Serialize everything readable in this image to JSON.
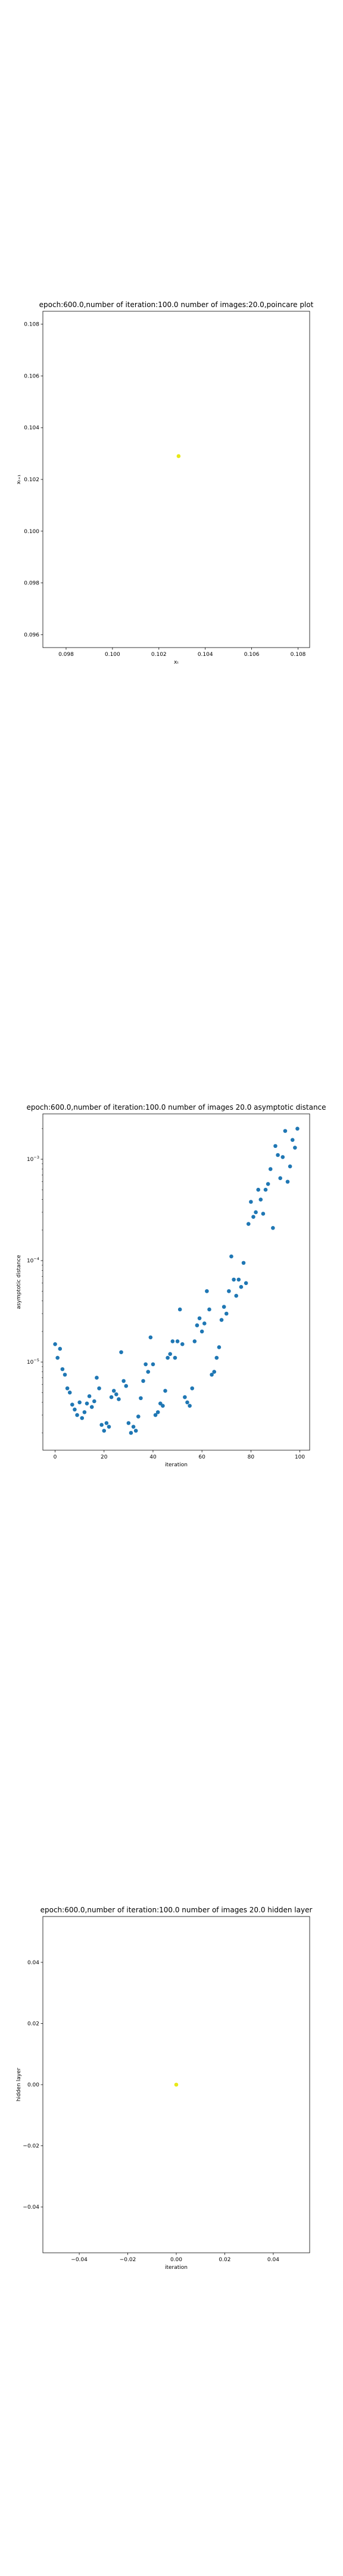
{
  "chart_data": [
    {
      "type": "scatter",
      "title": "epoch:600.0,number of iteration:100.0 number of images:20.0,poincare plot",
      "xlabel": "xₜ",
      "ylabel": "xₜ₊₁",
      "xlim": [
        0.097,
        0.1085
      ],
      "ylim": [
        0.0955,
        0.1085
      ],
      "xticks": [
        0.098,
        0.1,
        0.102,
        0.104,
        0.106,
        0.108
      ],
      "xtick_labels": [
        "0.098",
        "0.100",
        "0.102",
        "0.104",
        "0.106",
        "0.108"
      ],
      "yticks": [
        0.096,
        0.098,
        0.1,
        0.102,
        0.104,
        0.106,
        0.108
      ],
      "ytick_labels": [
        "0.096",
        "0.098",
        "0.100",
        "0.102",
        "0.104",
        "0.106",
        "0.108"
      ],
      "grid": false,
      "series": [
        {
          "x": [
            0.10285
          ],
          "y": [
            0.1029
          ],
          "color": "#e8e817"
        }
      ]
    },
    {
      "type": "scatter",
      "title": "epoch:600.0,number of iteration:100.0  number of images 20.0 asymptotic distance",
      "xlabel": "iteration",
      "ylabel": "asymptotic distance",
      "yscale": "log",
      "xlim": [
        -5,
        104
      ],
      "ylim": [
        1.35e-06,
        0.0028
      ],
      "xticks": [
        0,
        20,
        40,
        60,
        80,
        100
      ],
      "xtick_labels": [
        "0",
        "20",
        "40",
        "60",
        "80",
        "100"
      ],
      "yticks": [
        1e-05,
        0.0001,
        0.001
      ],
      "ytick_labels": [
        {
          "base": "10",
          "exp": "−5"
        },
        {
          "base": "10",
          "exp": "−4"
        },
        {
          "base": "10",
          "exp": "−3"
        }
      ],
      "grid": false,
      "series": [
        {
          "color": "#1f77b4",
          "x": [
            0,
            1,
            2,
            3,
            4,
            5,
            6,
            7,
            8,
            9,
            10,
            11,
            12,
            13,
            14,
            15,
            16,
            17,
            18,
            19,
            20,
            21,
            22,
            23,
            24,
            25,
            26,
            27,
            28,
            29,
            30,
            31,
            32,
            33,
            34,
            35,
            36,
            37,
            38,
            39,
            40,
            41,
            42,
            43,
            44,
            45,
            46,
            47,
            48,
            49,
            50,
            51,
            52,
            53,
            54,
            55,
            56,
            57,
            58,
            59,
            60,
            61,
            62,
            63,
            64,
            65,
            66,
            67,
            68,
            69,
            70,
            71,
            72,
            73,
            74,
            75,
            76,
            77,
            78,
            79,
            80,
            81,
            82,
            83,
            84,
            85,
            86,
            87,
            88,
            89,
            90,
            91,
            92,
            93,
            94,
            95,
            96,
            97,
            98,
            99
          ],
          "y": [
            1.5e-05,
            1.1e-05,
            1.35e-05,
            8.5e-06,
            7.5e-06,
            5.5e-06,
            5e-06,
            3.8e-06,
            3.4e-06,
            3e-06,
            4e-06,
            2.8e-06,
            3.2e-06,
            3.9e-06,
            4.6e-06,
            3.6e-06,
            4.1e-06,
            7e-06,
            5.5e-06,
            2.4e-06,
            2.1e-06,
            2.5e-06,
            2.3e-06,
            4.5e-06,
            5.2e-06,
            4.8e-06,
            4.3e-06,
            1.25e-05,
            6.5e-06,
            5.8e-06,
            2.5e-06,
            2e-06,
            2.3e-06,
            2.1e-06,
            2.9e-06,
            4.4e-06,
            6.5e-06,
            9.5e-06,
            8e-06,
            1.75e-05,
            9.5e-06,
            3e-06,
            3.2e-06,
            3.9e-06,
            3.7e-06,
            5.2e-06,
            1.1e-05,
            1.2e-05,
            1.6e-05,
            1.1e-05,
            1.6e-05,
            3.3e-05,
            1.5e-05,
            4.5e-06,
            4e-06,
            3.7e-06,
            5.5e-06,
            1.6e-05,
            2.3e-05,
            2.7e-05,
            2e-05,
            2.4e-05,
            5e-05,
            3.3e-05,
            7.5e-06,
            8e-06,
            1.1e-05,
            1.4e-05,
            2.6e-05,
            3.5e-05,
            3e-05,
            5e-05,
            0.00011,
            6.5e-05,
            4.5e-05,
            6.5e-05,
            5.5e-05,
            9.5e-05,
            6e-05,
            0.00023,
            0.00038,
            0.00027,
            0.0003,
            0.0005,
            0.0004,
            0.00029,
            0.0005,
            0.00057,
            0.0008,
            0.00021,
            0.00135,
            0.0011,
            0.00065,
            0.00105,
            0.0019,
            0.0006,
            0.00085,
            0.00155,
            0.0013,
            0.002
          ]
        }
      ]
    },
    {
      "type": "scatter",
      "title": "epoch:600.0,number of iteration:100.0  number of images 20.0 hidden layer",
      "xlabel": "iteration",
      "ylabel": "hidden layer",
      "xlim": [
        -0.055,
        0.055
      ],
      "ylim": [
        -0.055,
        0.055
      ],
      "xticks": [
        -0.04,
        -0.02,
        0.0,
        0.02,
        0.04
      ],
      "xtick_labels": [
        "−0.04",
        "−0.02",
        "0.00",
        "0.02",
        "0.04"
      ],
      "yticks": [
        -0.04,
        -0.02,
        0.0,
        0.02,
        0.04
      ],
      "ytick_labels": [
        "−0.04",
        "−0.02",
        "0.00",
        "0.02",
        "0.04"
      ],
      "grid": false,
      "series": [
        {
          "x": [
            0.0
          ],
          "y": [
            0.0
          ],
          "color": "#e8e817"
        }
      ]
    }
  ]
}
